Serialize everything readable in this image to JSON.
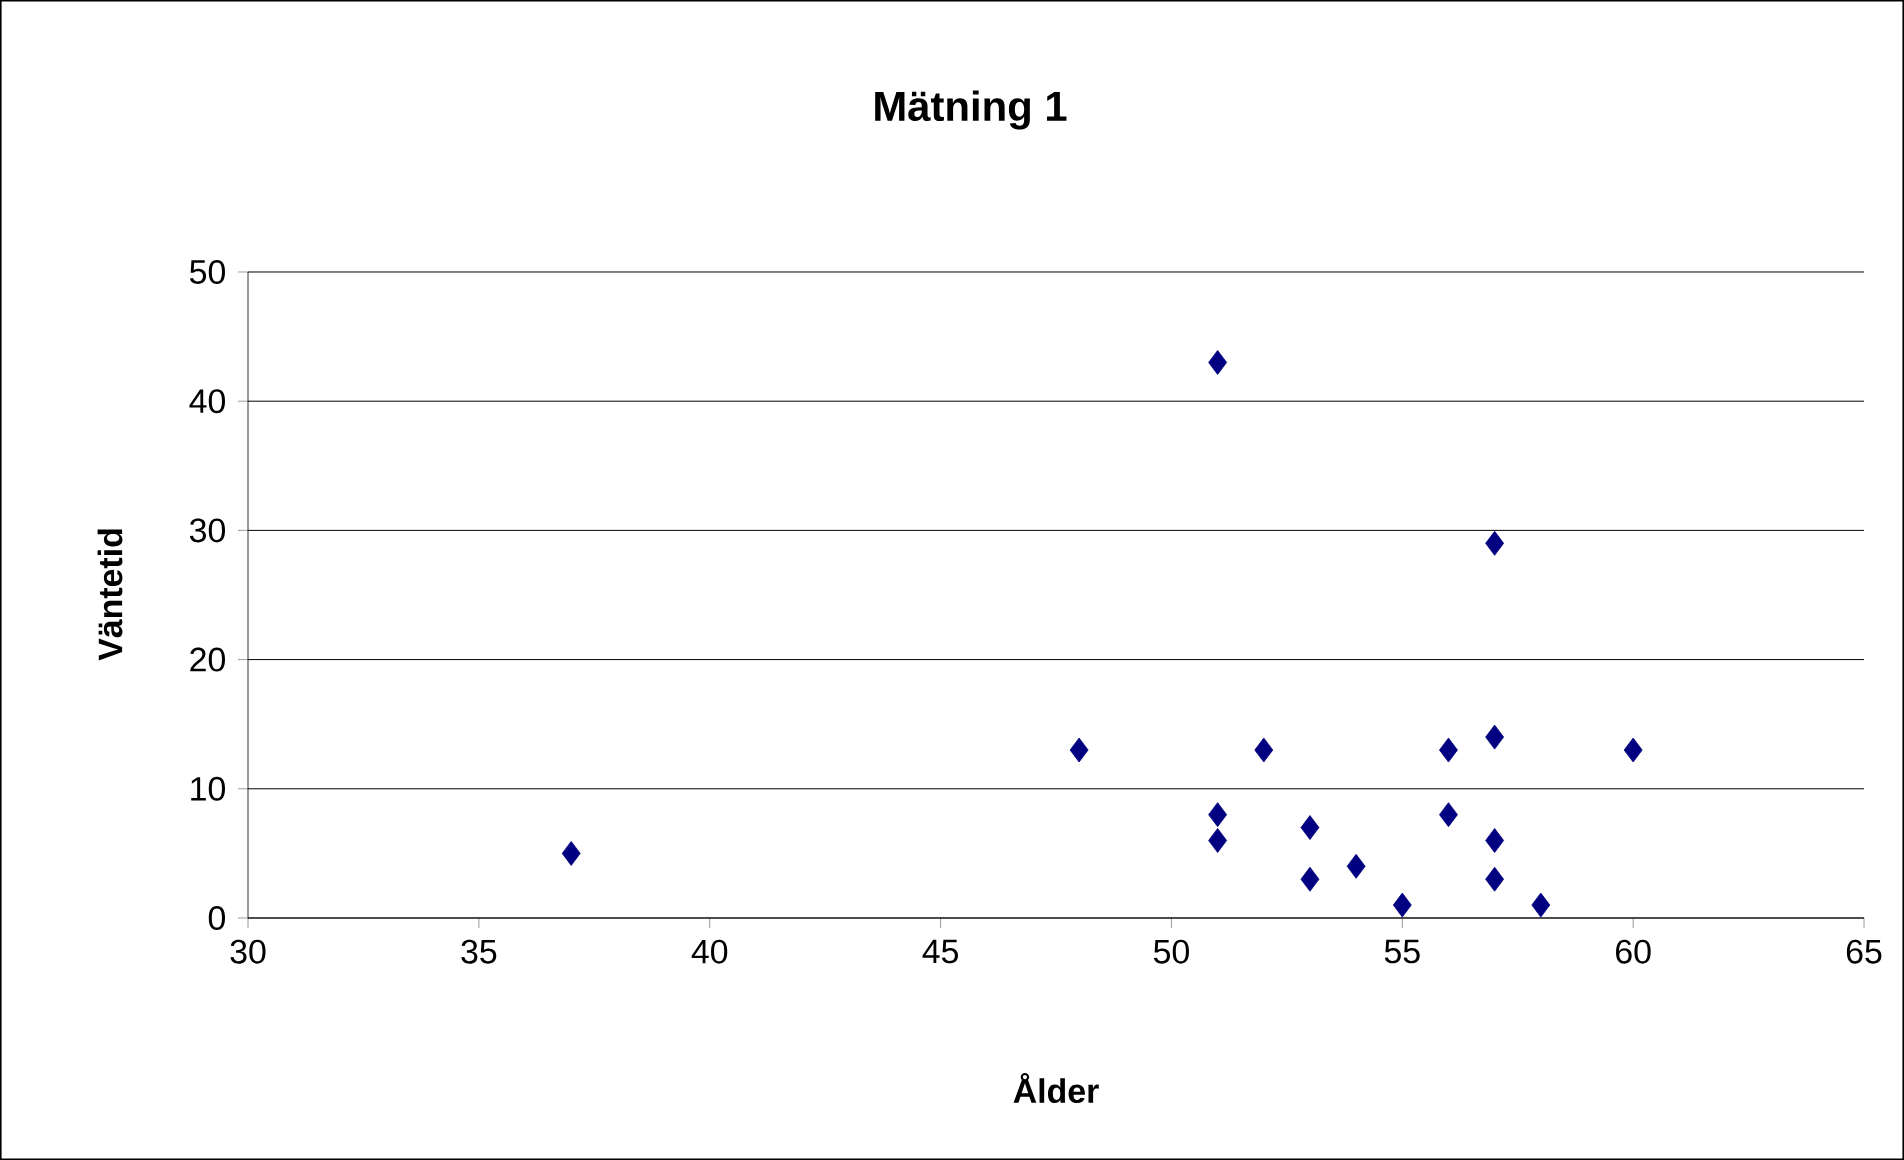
{
  "chart_data": {
    "type": "scatter",
    "title": "Mätning 1",
    "xlabel": "Ålder",
    "ylabel": "Väntetid",
    "x": [
      37,
      48,
      51,
      51,
      51,
      52,
      53,
      53,
      54,
      55,
      56,
      56,
      57,
      57,
      57,
      57,
      58,
      60
    ],
    "values": [
      5,
      13,
      43,
      8,
      6,
      13,
      7,
      3,
      4,
      1,
      13,
      8,
      29,
      14,
      6,
      3,
      1,
      13
    ],
    "color": "#000080",
    "marker": "diamond",
    "grid": "y",
    "xlim": [
      30,
      65
    ],
    "xticks": [
      30,
      35,
      40,
      45,
      50,
      55,
      60,
      65
    ],
    "ylim": [
      0,
      50
    ],
    "yticks": [
      0,
      10,
      20,
      30,
      40,
      50
    ]
  }
}
